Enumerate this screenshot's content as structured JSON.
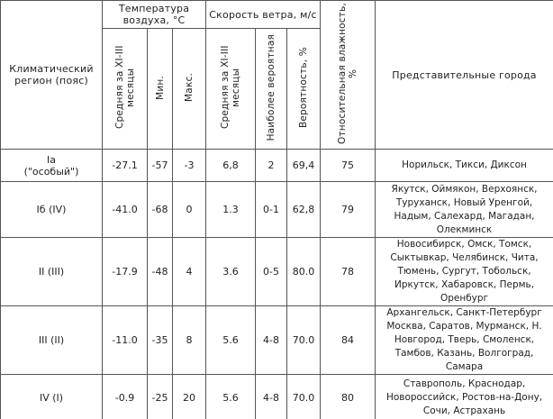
{
  "header": {
    "region": "Климатический регион (пояс)",
    "temperature": {
      "title": "Температура воздуха, °С",
      "columns": [
        "Средняя за XI-III месяцы",
        "Мин.",
        "Макс."
      ]
    },
    "wind": {
      "title": "Скорость ветра, м/с",
      "columns": [
        "Средняя за XI-III месяцы",
        "Наиболее вероятная",
        "Вероятность, %"
      ]
    },
    "humidity": "Относительная влажность, %",
    "cities": "Представительные города"
  },
  "table": {
    "rows": [
      [
        "Iа\n(\"особый\")",
        "-27.1",
        "-57",
        "-3",
        "6,8",
        "2",
        "69,4",
        "75",
        "Норильск, Тикси, Диксон"
      ],
      [
        "Iб (IV)",
        "-41.0",
        "-68",
        "0",
        "1.3",
        "0-1",
        "62,8",
        "79",
        "Якутск, Оймякон, Верхоянск, Туруханск, Новый Уренгой, Надым, Салехард, Магадан, Олекминск"
      ],
      [
        "II (III)",
        "-17.9",
        "-48",
        "4",
        "3.6",
        "0-5",
        "80.0",
        "78",
        "Новосибирск, Омск, Томск, Сыктывкар, Челябинск, Чита, Тюмень, Сургут, Тобольск, Иркутск, Хабаровск, Пермь, Оренбург"
      ],
      [
        "III (II)",
        "-11.0",
        "-35",
        "8",
        "5.6",
        "4-8",
        "70.0",
        "84",
        "Архангельск, Санкт-Петербург Москва, Саратов, Мурманск, Н. Новгород, Тверь, Смоленск, Тамбов, Казань, Волгоград, Самара"
      ],
      [
        "IV (I)",
        "-0.9",
        "-25",
        "20",
        "5.6",
        "4-8",
        "70.0",
        "80",
        "Ставрополь, Краснодар, Новороссийск, Ростов-на-Дону, Сочи, Астрахань"
      ]
    ]
  }
}
